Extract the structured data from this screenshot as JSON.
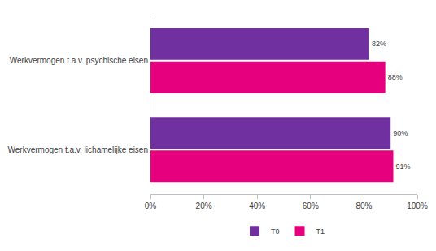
{
  "chart_data": {
    "type": "bar",
    "orientation": "horizontal",
    "categories": [
      "Werkvermogen t.a.v. psychische eisen",
      "Werkvermogen t.a.v. lichamelijke eisen"
    ],
    "series": [
      {
        "name": "T0",
        "color": "#7030a0",
        "values": [
          82,
          90
        ],
        "value_labels": [
          "82%",
          "90%"
        ]
      },
      {
        "name": "T1",
        "color": "#e6007e",
        "values": [
          88,
          91
        ],
        "value_labels": [
          "88%",
          "91%"
        ]
      }
    ],
    "xlim": [
      0,
      100
    ],
    "xticks": [
      {
        "value": 0,
        "label": "0%"
      },
      {
        "value": 20,
        "label": "20%"
      },
      {
        "value": 40,
        "label": "40%"
      },
      {
        "value": 60,
        "label": "60%"
      },
      {
        "value": 80,
        "label": "80%"
      },
      {
        "value": 100,
        "label": "100%"
      }
    ],
    "grid": false,
    "data_labels": true,
    "legend": "bottom"
  }
}
